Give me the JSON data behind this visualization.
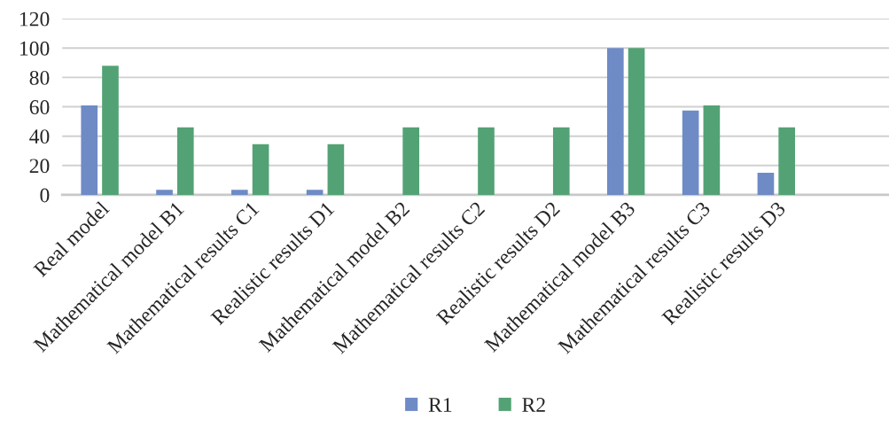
{
  "chart_data": {
    "type": "bar",
    "categories": [
      "Real model",
      "Mathematical model B1",
      "Mathematical results C1",
      "Realistic results D1",
      "Mathematical model B2",
      "Mathematical results C2",
      "Realistic results D2",
      "Mathematical model B3",
      "Mathematical results C3",
      "Realistic results D3",
      null
    ],
    "series": [
      {
        "name": "R1",
        "color": "#6e8bc6",
        "values": [
          61,
          3.5,
          3.5,
          3.5,
          0,
          0,
          0,
          100,
          57.5,
          15,
          null
        ]
      },
      {
        "name": "R2",
        "color": "#53a275",
        "values": [
          88,
          46,
          34.5,
          34.5,
          46,
          46,
          46,
          100,
          61,
          46,
          null
        ]
      }
    ],
    "ylim": [
      0,
      120
    ],
    "yticks": [
      0,
      20,
      40,
      60,
      80,
      100,
      120
    ],
    "grid": "y",
    "legend": "bottom"
  }
}
